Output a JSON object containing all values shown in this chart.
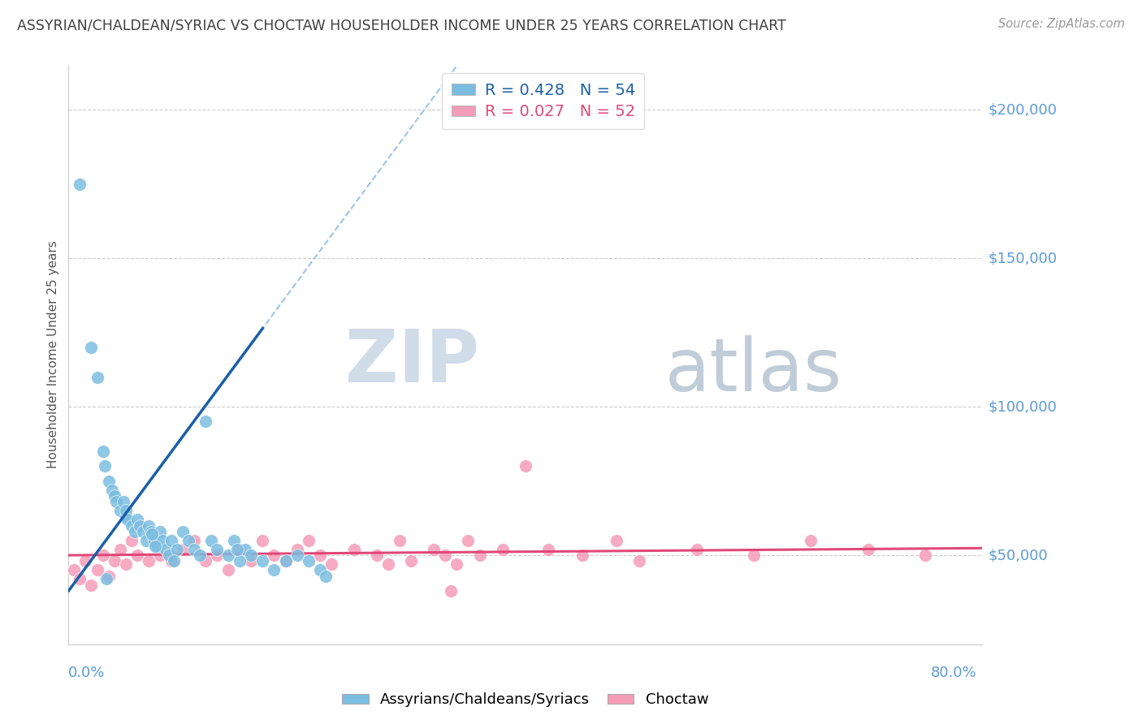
{
  "title": "ASSYRIAN/CHALDEAN/SYRIAC VS CHOCTAW HOUSEHOLDER INCOME UNDER 25 YEARS CORRELATION CHART",
  "source_text": "Source: ZipAtlas.com",
  "ylabel": "Householder Income Under 25 years",
  "ytick_labels": [
    "$50,000",
    "$100,000",
    "$150,000",
    "$200,000"
  ],
  "ytick_values": [
    50000,
    100000,
    150000,
    200000
  ],
  "legend1_label": "Assyrians/Chaldeans/Syriacs",
  "legend2_label": "Choctaw",
  "R1": 0.428,
  "N1": 54,
  "R2": 0.027,
  "N2": 52,
  "blue_color": "#7bbde0",
  "pink_color": "#f59db8",
  "blue_line_color": "#1a5fa8",
  "pink_line_color": "#e04878",
  "gray_dash_color": "#9ec4e8",
  "title_color": "#404040",
  "axis_label_color": "#5b9bd5",
  "watermark_zip_color": "#d0dce8",
  "watermark_atlas_color": "#c0ccd8",
  "blue_scatter_x": [
    1.0,
    2.0,
    2.5,
    3.0,
    3.2,
    3.5,
    3.8,
    4.0,
    4.2,
    4.5,
    4.8,
    5.0,
    5.0,
    5.2,
    5.5,
    5.8,
    6.0,
    6.2,
    6.5,
    6.8,
    7.0,
    7.2,
    7.5,
    7.8,
    8.0,
    8.2,
    8.5,
    8.8,
    9.0,
    9.5,
    10.0,
    10.5,
    11.0,
    11.5,
    12.0,
    12.5,
    13.0,
    14.0,
    15.0,
    15.5,
    16.0,
    17.0,
    18.0,
    19.0,
    20.0,
    21.0,
    22.0,
    22.5,
    14.5,
    14.8,
    7.3,
    7.6,
    9.2,
    3.3
  ],
  "blue_scatter_y": [
    175000,
    120000,
    110000,
    85000,
    80000,
    75000,
    72000,
    70000,
    68000,
    65000,
    68000,
    63000,
    65000,
    62000,
    60000,
    58000,
    62000,
    60000,
    58000,
    55000,
    60000,
    58000,
    55000,
    53000,
    58000,
    55000,
    52000,
    50000,
    55000,
    52000,
    58000,
    55000,
    52000,
    50000,
    95000,
    55000,
    52000,
    50000,
    48000,
    52000,
    50000,
    48000,
    45000,
    48000,
    50000,
    48000,
    45000,
    43000,
    55000,
    52000,
    57000,
    53000,
    48000,
    42000
  ],
  "pink_scatter_x": [
    0.5,
    1.0,
    1.5,
    2.0,
    2.5,
    3.0,
    3.5,
    4.0,
    4.5,
    5.0,
    5.5,
    6.0,
    7.0,
    7.5,
    8.0,
    9.0,
    10.0,
    11.0,
    12.0,
    13.0,
    14.0,
    15.0,
    16.0,
    17.0,
    18.0,
    19.0,
    20.0,
    21.0,
    22.0,
    23.0,
    25.0,
    27.0,
    28.0,
    29.0,
    30.0,
    32.0,
    33.0,
    34.0,
    35.0,
    36.0,
    38.0,
    40.0,
    42.0,
    45.0,
    48.0,
    50.0,
    55.0,
    60.0,
    65.0,
    70.0,
    75.0,
    33.5
  ],
  "pink_scatter_y": [
    45000,
    42000,
    48000,
    40000,
    45000,
    50000,
    43000,
    48000,
    52000,
    47000,
    55000,
    50000,
    48000,
    55000,
    50000,
    48000,
    52000,
    55000,
    48000,
    50000,
    45000,
    52000,
    48000,
    55000,
    50000,
    48000,
    52000,
    55000,
    50000,
    47000,
    52000,
    50000,
    47000,
    55000,
    48000,
    52000,
    50000,
    47000,
    55000,
    50000,
    52000,
    80000,
    52000,
    50000,
    55000,
    48000,
    52000,
    50000,
    55000,
    52000,
    50000,
    38000
  ],
  "xlim": [
    0,
    80
  ],
  "ylim": [
    20000,
    215000
  ],
  "blue_line_x_start": 0,
  "blue_line_x_end": 17,
  "blue_intercept": 38000,
  "blue_slope": 5200,
  "pink_intercept": 50000,
  "pink_slope": 30
}
